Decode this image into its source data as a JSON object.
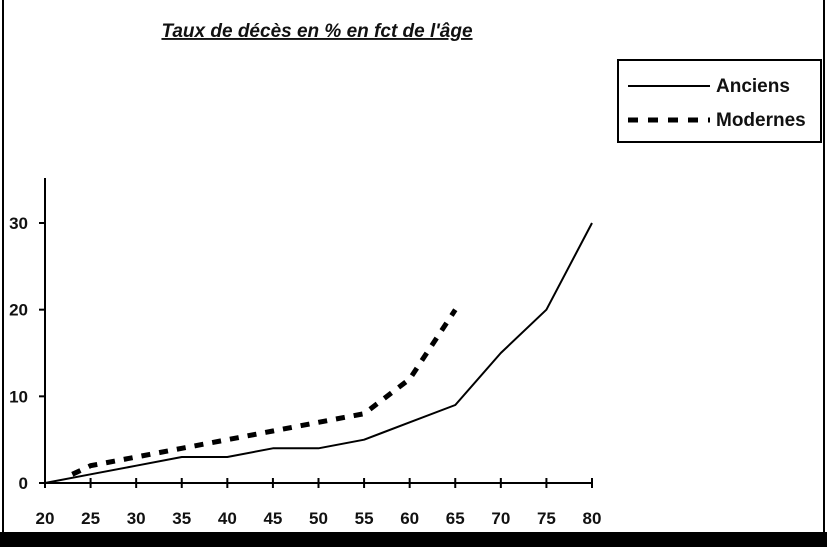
{
  "chart_data": {
    "type": "line",
    "title": "Taux de décès en % en fct de l'âge",
    "xlabel": "",
    "ylabel": "",
    "xlim": [
      20,
      80
    ],
    "ylim": [
      0,
      35
    ],
    "x_ticks": [
      20,
      25,
      30,
      35,
      40,
      45,
      50,
      55,
      60,
      65,
      70,
      75,
      80
    ],
    "y_ticks": [
      0,
      10,
      20,
      30
    ],
    "grid": false,
    "legend_position": "top-right",
    "series": [
      {
        "name": "Anciens",
        "style": "solid",
        "color": "#000000",
        "x": [
          20,
          25,
          30,
          35,
          40,
          45,
          50,
          55,
          60,
          65,
          70,
          75,
          80
        ],
        "y": [
          0,
          1,
          2,
          3,
          3,
          4,
          4,
          5,
          7,
          9,
          15,
          20,
          30
        ]
      },
      {
        "name": "Modernes",
        "style": "dashed",
        "color": "#000000",
        "x": [
          23,
          25,
          30,
          35,
          40,
          45,
          50,
          55,
          60,
          65
        ],
        "y": [
          1,
          2,
          3,
          4,
          5,
          6,
          7,
          8,
          12,
          20
        ]
      }
    ]
  },
  "colors": {
    "background": "#ffffff",
    "ink": "#000000",
    "bottom_bar": "#000000"
  }
}
